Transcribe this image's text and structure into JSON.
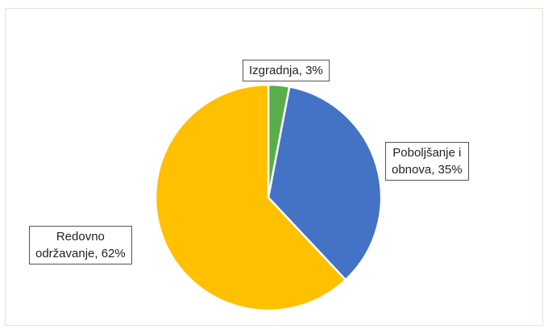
{
  "chart_data": {
    "type": "pie",
    "title": "",
    "categories": [
      "Izgradnja",
      "Poboljšanje i obnova",
      "Redovno održavanje"
    ],
    "values": [
      3,
      35,
      62
    ],
    "unit": "%",
    "colors": [
      "#5aad4b",
      "#4472c4",
      "#ffc000"
    ],
    "start_angle_deg": 0,
    "direction": "clockwise",
    "labels": [
      {
        "lines": [
          "Izgradnja, 3%"
        ]
      },
      {
        "lines": [
          "Poboljšanje i",
          "obnova, 35%"
        ]
      },
      {
        "lines": [
          "Redovno",
          "održavanje, 62%"
        ]
      }
    ],
    "legend": "none"
  }
}
